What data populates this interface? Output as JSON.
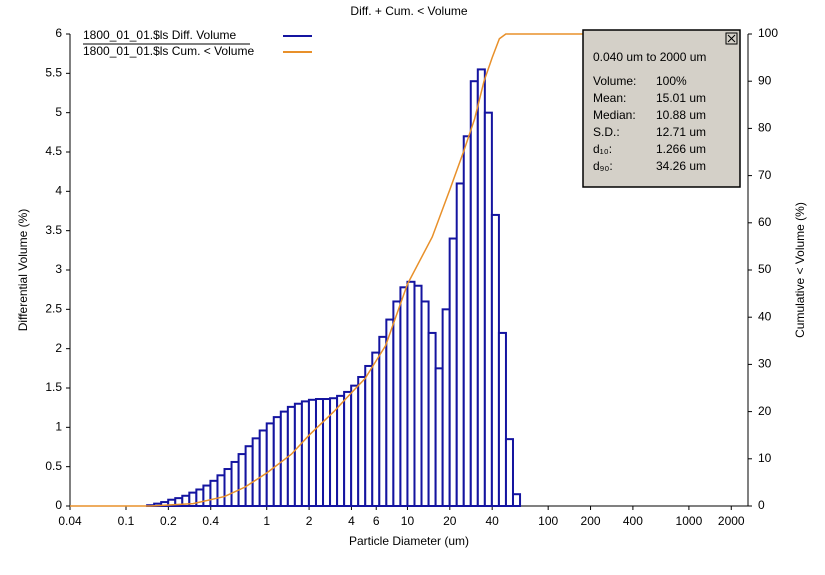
{
  "chart_data": {
    "type": "histogram",
    "title": "Diff. + Cum. < Volume",
    "xlabel": "Particle Diameter (um)",
    "ylabel": "Differential Volume (%)",
    "y2label": "Cumulative < Volume (%)",
    "xscale": "log",
    "xlim": [
      0.04,
      2630
    ],
    "xticks": [
      0.04,
      0.1,
      0.2,
      0.4,
      1,
      2,
      4,
      6,
      10,
      20,
      40,
      100,
      200,
      400,
      1000,
      2000
    ],
    "ylim": [
      0,
      6
    ],
    "yticks": [
      0,
      0.5,
      1,
      1.5,
      2,
      2.5,
      3,
      3.5,
      4,
      4.5,
      5,
      5.5,
      6
    ],
    "y2lim": [
      0,
      100
    ],
    "y2ticks": [
      0,
      10,
      20,
      30,
      40,
      50,
      60,
      70,
      80,
      90,
      100
    ],
    "legend": "upper left",
    "series": [
      {
        "name": "1800_01_01.$ls Diff. Volume",
        "color": "#1414a0",
        "type": "histogram",
        "bins": [
          0.1413,
          0.1585,
          0.1778,
          0.1995,
          0.2239,
          0.2512,
          0.2818,
          0.3162,
          0.3548,
          0.3981,
          0.4467,
          0.5012,
          0.5623,
          0.631,
          0.7079,
          0.7943,
          0.8913,
          1,
          1.122,
          1.259,
          1.413,
          1.585,
          1.778,
          1.995,
          2.239,
          2.512,
          2.818,
          3.162,
          3.548,
          3.981,
          4.467,
          5.012,
          5.623,
          6.31,
          7.079,
          7.943,
          8.913,
          10,
          11.22,
          12.59,
          14.13,
          15.85,
          17.78,
          19.95,
          22.39,
          25.12,
          28.18,
          31.62,
          35.48,
          39.81,
          44.67,
          50.12,
          56.23,
          63.1
        ],
        "values": [
          0.01,
          0.03,
          0.05,
          0.08,
          0.1,
          0.13,
          0.17,
          0.21,
          0.26,
          0.32,
          0.39,
          0.47,
          0.56,
          0.66,
          0.76,
          0.86,
          0.96,
          1.05,
          1.13,
          1.2,
          1.26,
          1.3,
          1.33,
          1.35,
          1.36,
          1.36,
          1.37,
          1.4,
          1.45,
          1.53,
          1.64,
          1.78,
          1.95,
          2.15,
          2.37,
          2.6,
          2.78,
          2.85,
          2.8,
          2.6,
          2.2,
          1.75,
          2.5,
          3.4,
          4.1,
          4.7,
          5.4,
          5.55,
          5.0,
          3.7,
          2.2,
          0.85,
          0.15
        ]
      },
      {
        "name": "1800_01_01.$ls Cum. < Volume",
        "color": "#e8902a",
        "type": "line",
        "axis": "y2",
        "x": [
          0.04,
          0.15,
          0.3,
          0.5,
          0.7,
          1,
          1.5,
          2,
          3,
          4,
          5,
          7,
          10,
          15,
          20,
          25,
          30,
          35,
          40,
          45,
          50,
          2000
        ],
        "values": [
          0,
          0,
          0.5,
          2,
          4,
          7,
          11,
          15,
          20,
          24,
          27,
          34,
          47,
          57,
          67,
          75,
          82,
          90,
          95,
          99,
          100,
          100
        ]
      }
    ]
  },
  "info_box": {
    "range": "0.040 um to 2000 um",
    "rows": [
      [
        "Volume:",
        "100%"
      ],
      [
        "Mean:",
        "15.01 um"
      ],
      [
        "Median:",
        "10.88 um"
      ],
      [
        "S.D.:",
        "12.71 um"
      ],
      [
        "d₁₀:",
        "1.266 um"
      ],
      [
        "d₉₀:",
        "34.26 um"
      ]
    ]
  }
}
